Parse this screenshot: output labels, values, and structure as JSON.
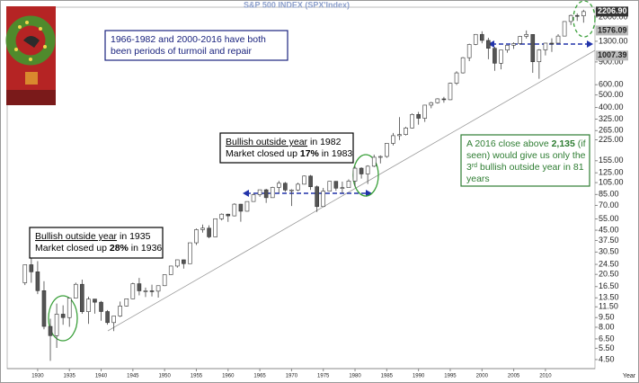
{
  "chart_data": {
    "type": "candlestick",
    "title": "S&P  500  INDEX  (SPX'Index)",
    "x_label": "Year",
    "log_scale": true,
    "x": [
      1928,
      1929,
      1930,
      1931,
      1932,
      1933,
      1934,
      1935,
      1936,
      1937,
      1938,
      1939,
      1940,
      1941,
      1942,
      1943,
      1944,
      1945,
      1946,
      1947,
      1948,
      1949,
      1950,
      1951,
      1952,
      1953,
      1954,
      1955,
      1956,
      1957,
      1958,
      1959,
      1960,
      1961,
      1962,
      1963,
      1964,
      1965,
      1966,
      1967,
      1968,
      1969,
      1970,
      1971,
      1972,
      1973,
      1974,
      1975,
      1976,
      1977,
      1978,
      1979,
      1980,
      1981,
      1982,
      1983,
      1984,
      1985,
      1986,
      1987,
      1988,
      1989,
      1990,
      1991,
      1992,
      1993,
      1994,
      1995,
      1996,
      1997,
      1998,
      1999,
      2000,
      2001,
      2002,
      2003,
      2004,
      2005,
      2006,
      2007,
      2008,
      2009,
      2010,
      2011,
      2012,
      2013,
      2014,
      2015,
      2016
    ],
    "open": [
      17.66,
      24.35,
      21.45,
      15.34,
      8.12,
      6.89,
      10.1,
      9.5,
      13.43,
      17.18,
      10.55,
      13.21,
      12.49,
      10.58,
      8.69,
      9.77,
      11.67,
      13.28,
      17.36,
      15.3,
      15.3,
      15.2,
      16.76,
      20.41,
      23.77,
      26.57,
      24.81,
      35.98,
      45.48,
      46.67,
      39.99,
      55.21,
      59.89,
      58.11,
      71.55,
      63.1,
      75.02,
      84.75,
      92.43,
      80.33,
      96.47,
      103.86,
      92.06,
      92.15,
      102.09,
      118.05,
      97.55,
      68.56,
      90.19,
      107.46,
      95.1,
      96.11,
      107.94,
      135.76,
      122.55,
      140.64,
      164.93,
      167.24,
      211.28,
      242.17,
      247.08,
      277.72,
      353.4,
      330.22,
      417.09,
      435.71,
      466.45,
      459.27,
      615.93,
      740.74,
      970.43,
      1229.23,
      1469.25,
      1320.28,
      1148.08,
      879.82,
      1111.92,
      1211.92,
      1248.29,
      1418.3,
      1468.36,
      903.25,
      1115.1,
      1257.64,
      1257.6,
      1426.19,
      1848.36,
      2058.9,
      2043.94
    ],
    "high": [
      24.35,
      31.92,
      25.92,
      18.17,
      9.31,
      12.2,
      11.82,
      13.46,
      17.69,
      18.68,
      13.79,
      13.23,
      12.77,
      10.86,
      9.77,
      12.64,
      13.29,
      17.68,
      19.25,
      16.2,
      17.06,
      16.79,
      20.43,
      23.85,
      26.59,
      26.66,
      35.98,
      46.41,
      49.74,
      49.13,
      55.21,
      60.71,
      60.39,
      72.64,
      72.0,
      75.02,
      86.28,
      92.63,
      94.06,
      97.59,
      108.37,
      106.16,
      93.46,
      104.77,
      119.12,
      120.24,
      99.8,
      95.61,
      107.83,
      107.97,
      106.99,
      111.27,
      140.52,
      138.12,
      143.02,
      172.65,
      170.41,
      212.02,
      254.0,
      336.77,
      283.66,
      359.8,
      369.78,
      418.32,
      442.65,
      471.29,
      482.85,
      622.88,
      762.12,
      983.79,
      1244.93,
      1478.0,
      1552.87,
      1383.37,
      1176.97,
      1112.56,
      1217.33,
      1275.8,
      1431.81,
      1576.09,
      1471.77,
      1130.38,
      1262.6,
      1370.58,
      1474.51,
      1849.44,
      2093.55,
      2134.72,
      2277.53
    ],
    "low": [
      16.95,
      17.66,
      14.44,
      7.72,
      4.4,
      5.53,
      8.36,
      8.06,
      13.4,
      10.17,
      8.5,
      10.18,
      8.99,
      8.37,
      7.47,
      9.6,
      11.56,
      13.21,
      14.12,
      13.71,
      13.84,
      13.55,
      16.65,
      20.3,
      23.09,
      22.71,
      24.8,
      34.58,
      43.11,
      38.98,
      39.9,
      53.58,
      52.2,
      57.57,
      52.32,
      62.69,
      74.9,
      81.6,
      73.2,
      80.2,
      87.72,
      89.2,
      69.29,
      90.16,
      101.67,
      92.16,
      62.28,
      68.0,
      90.0,
      90.71,
      86.9,
      96.0,
      98.22,
      112.77,
      102.42,
      138.34,
      147.82,
      163.36,
      203.49,
      223.92,
      242.63,
      275.31,
      294.51,
      309.35,
      394.5,
      429.05,
      435.86,
      457.2,
      597.29,
      733.16,
      912.83,
      1212.19,
      1254.07,
      944.75,
      768.63,
      788.9,
      1060.72,
      1136.15,
      1219.29,
      1363.98,
      741.02,
      666.79,
      1010.91,
      1074.77,
      1257.0,
      1425.0,
      1737.92,
      1867.01,
      1810.1
    ],
    "close": [
      24.35,
      21.45,
      15.34,
      8.12,
      6.89,
      10.1,
      9.5,
      13.43,
      17.18,
      10.55,
      13.21,
      12.49,
      10.58,
      8.69,
      9.77,
      11.67,
      13.28,
      17.36,
      15.3,
      15.3,
      15.2,
      16.76,
      20.41,
      23.77,
      26.57,
      24.81,
      35.98,
      45.48,
      46.67,
      39.99,
      55.21,
      59.89,
      58.11,
      71.55,
      63.1,
      75.02,
      84.75,
      92.43,
      80.33,
      96.47,
      103.86,
      92.06,
      92.15,
      102.09,
      118.05,
      97.55,
      68.56,
      90.19,
      107.46,
      95.1,
      96.11,
      107.94,
      135.76,
      122.55,
      140.64,
      164.93,
      167.24,
      211.28,
      242.17,
      247.08,
      277.72,
      353.4,
      330.22,
      417.09,
      435.71,
      466.45,
      459.27,
      615.93,
      740.74,
      970.43,
      1229.23,
      1469.25,
      1320.28,
      1148.08,
      879.82,
      1111.92,
      1211.92,
      1248.29,
      1418.3,
      1468.36,
      903.25,
      1115.1,
      1257.64,
      1257.6,
      1426.19,
      1848.36,
      2058.9,
      2043.94,
      2206.9
    ],
    "up_color": "#ffffff",
    "down_color": "#555555",
    "xlim": [
      1925.2,
      2017.8
    ],
    "xticks": [
      1930,
      1935,
      1940,
      1945,
      1950,
      1955,
      1960,
      1965,
      1970,
      1975,
      1980,
      1985,
      1990,
      1995,
      2000,
      2005,
      2010
    ],
    "ylim": [
      3.83,
      2385
    ],
    "yticks": [
      {
        "value": 2000,
        "label": "2000.00"
      },
      {
        "value": 1300,
        "label": "1300.00"
      },
      {
        "value": 900,
        "label": "900.00"
      },
      {
        "value": 600,
        "label": "600.00"
      },
      {
        "value": 500,
        "label": "500.00"
      },
      {
        "value": 400,
        "label": "400.00"
      },
      {
        "value": 325,
        "label": "325.00"
      },
      {
        "value": 265,
        "label": "265.00"
      },
      {
        "value": 225,
        "label": "225.00"
      },
      {
        "value": 155,
        "label": "155.00"
      },
      {
        "value": 125,
        "label": "125.00"
      },
      {
        "value": 105,
        "label": "105.00"
      },
      {
        "value": 85,
        "label": "85.00"
      },
      {
        "value": 70,
        "label": "70.00"
      },
      {
        "value": 55,
        "label": "55.00"
      },
      {
        "value": 45,
        "label": "45.00"
      },
      {
        "value": 37.5,
        "label": "37.50"
      },
      {
        "value": 30.5,
        "label": "30.50"
      },
      {
        "value": 24.5,
        "label": "24.50"
      },
      {
        "value": 20.5,
        "label": "20.50"
      },
      {
        "value": 16.5,
        "label": "16.50"
      },
      {
        "value": 13.5,
        "label": "13.50"
      },
      {
        "value": 11.5,
        "label": "11.50"
      },
      {
        "value": 9.5,
        "label": "9.50"
      },
      {
        "value": 8,
        "label": "8.00"
      },
      {
        "value": 6.5,
        "label": "6.50"
      },
      {
        "value": 5.5,
        "label": "5.50"
      },
      {
        "value": 4.5,
        "label": "4.50"
      }
    ],
    "price_labels": [
      {
        "value": 2206.9,
        "label": "2206.90",
        "color": "#333333"
      },
      {
        "value": 1576.09,
        "label": "1576.09",
        "color": "#bbbbbb"
      },
      {
        "value": 1007.39,
        "label": "1007.39",
        "color": "#bbbbbb"
      }
    ],
    "annotations": [
      {
        "color": "#1a237e",
        "lines": [
          [
            {
              "text": "1966-1982 and 2000-2016 have both"
            }
          ],
          [
            {
              "text": "been periods of turmoil and repair"
            }
          ]
        ]
      },
      {
        "color": "#000000",
        "lines": [
          [
            {
              "text": "Bullish outside year",
              "underline": true
            },
            {
              "text": " in 1935"
            }
          ],
          [
            {
              "text": "Market closed up "
            },
            {
              "text": "28%",
              "bold": true
            },
            {
              "text": " in 1936"
            }
          ]
        ]
      },
      {
        "color": "#000000",
        "lines": [
          [
            {
              "text": "Bullish outside year",
              "underline": true
            },
            {
              "text": " in 1982"
            }
          ],
          [
            {
              "text": "Market closed up "
            },
            {
              "text": "17%",
              "bold": true
            },
            {
              "text": " in 1983"
            }
          ]
        ]
      },
      {
        "color": "#2e7d32",
        "lines": [
          [
            {
              "text": "A 2016 close above "
            },
            {
              "text": "2,135",
              "bold": true
            },
            {
              "text": " (if"
            }
          ],
          [
            {
              "text": "seen) would give us only the"
            }
          ],
          [
            {
              "text": "3"
            },
            {
              "text": "rd",
              "sup": true
            },
            {
              "text": " bullish outside year in 81"
            }
          ],
          [
            {
              "text": "years"
            }
          ]
        ]
      }
    ]
  }
}
